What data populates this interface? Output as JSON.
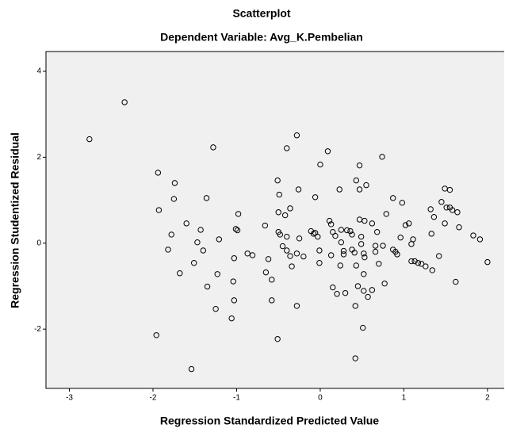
{
  "chart_data": {
    "type": "scatter",
    "title": "Scatterplot",
    "subtitle": "Dependent Variable: Avg_K.Pembelian",
    "xlabel": "Regression Standardized Predicted Value",
    "ylabel": "Regression Studentized Residual",
    "xlim": [
      -3.28,
      2.2
    ],
    "ylim": [
      -3.38,
      4.46
    ],
    "xticks": [
      -3,
      -2,
      -1,
      0,
      1,
      2
    ],
    "yticks": [
      -2,
      0,
      2,
      4
    ],
    "color": "#000000",
    "background": "#f0f0f0",
    "x": [
      -2.76,
      -2.34,
      -1.94,
      -1.93,
      -1.74,
      -1.75,
      -1.78,
      -1.82,
      -1.96,
      -1.6,
      -1.68,
      -1.54,
      -1.36,
      -1.28,
      -1.43,
      -1.47,
      -1.51,
      -1.4,
      -1.35,
      -1.25,
      -1.21,
      -1.23,
      -1.03,
      -1.04,
      -1.03,
      -1.06,
      -0.98,
      -1.01,
      -0.99,
      -0.87,
      -0.81,
      -0.66,
      -0.65,
      -0.62,
      -0.58,
      -0.58,
      -0.51,
      -0.49,
      -0.51,
      -0.5,
      -0.5,
      -0.48,
      -0.45,
      -0.4,
      -0.4,
      -0.36,
      -0.34,
      -0.36,
      -0.42,
      -0.4,
      -0.28,
      -0.28,
      -0.28,
      -0.26,
      -0.25,
      -0.2,
      -0.11,
      -0.08,
      -0.06,
      -0.03,
      -0.01,
      -0.01,
      -0.06,
      0.0,
      0.09,
      0.11,
      0.13,
      0.13,
      0.15,
      0.18,
      0.15,
      0.2,
      0.23,
      0.24,
      0.25,
      0.25,
      0.28,
      0.28,
      0.3,
      0.32,
      0.36,
      0.38,
      0.41,
      0.38,
      0.43,
      0.47,
      0.47,
      0.49,
      0.49,
      0.43,
      0.45,
      0.42,
      0.42,
      0.47,
      0.55,
      0.52,
      0.53,
      0.52,
      0.52,
      0.57,
      0.62,
      0.62,
      0.66,
      0.66,
      0.53,
      0.51,
      0.68,
      0.7,
      0.75,
      0.77,
      0.79,
      0.74,
      0.87,
      0.92,
      0.9,
      0.96,
      0.98,
      1.02,
      1.06,
      1.09,
      1.09,
      1.13,
      1.17,
      1.21,
      1.26,
      1.32,
      1.33,
      1.36,
      1.42,
      1.45,
      1.49,
      1.55,
      1.51,
      1.55,
      1.58,
      1.64,
      1.49,
      1.62,
      1.66,
      1.83,
      1.91,
      2.0,
      1.34,
      1.11,
      0.87
    ],
    "values": [
      2.42,
      3.28,
      1.64,
      0.77,
      1.4,
      1.03,
      0.2,
      -0.15,
      -2.14,
      0.46,
      -0.7,
      -2.93,
      1.05,
      2.23,
      0.31,
      0.02,
      -0.46,
      -0.17,
      -1.01,
      -1.53,
      0.09,
      -0.72,
      -0.35,
      -0.89,
      -1.33,
      -1.75,
      0.68,
      0.33,
      0.3,
      -0.24,
      -0.28,
      0.41,
      -0.68,
      -0.37,
      -0.85,
      -1.33,
      -2.23,
      1.13,
      1.46,
      0.72,
      0.26,
      0.2,
      -0.07,
      0.15,
      -0.17,
      -0.3,
      -0.54,
      0.81,
      0.65,
      2.21,
      2.51,
      -0.24,
      -1.46,
      1.25,
      0.11,
      -0.31,
      0.28,
      0.22,
      0.24,
      0.15,
      -0.17,
      -0.46,
      1.07,
      1.83,
      2.14,
      0.52,
      0.44,
      -0.28,
      0.26,
      0.17,
      -1.03,
      -1.18,
      1.25,
      -0.52,
      0.31,
      0.02,
      -0.18,
      -0.26,
      -1.16,
      0.3,
      0.28,
      -0.15,
      -0.22,
      0.2,
      1.46,
      1.81,
      0.55,
      0.15,
      -0.02,
      -0.52,
      -1.0,
      -1.46,
      -2.68,
      1.25,
      1.35,
      -0.24,
      -0.33,
      -0.72,
      -1.11,
      -1.25,
      -1.09,
      0.46,
      -0.06,
      -0.2,
      0.52,
      -1.97,
      0.26,
      -0.48,
      -0.06,
      -0.94,
      0.68,
      2.01,
      1.05,
      -0.26,
      -0.2,
      0.13,
      0.94,
      0.42,
      0.46,
      -0.02,
      -0.42,
      -0.42,
      -0.46,
      -0.48,
      -0.54,
      0.79,
      0.22,
      0.61,
      -0.3,
      0.96,
      1.27,
      1.24,
      0.83,
      0.83,
      0.77,
      0.72,
      0.46,
      -0.9,
      0.37,
      0.18,
      0.09,
      -0.44,
      -0.63,
      0.09,
      -0.15
    ]
  }
}
